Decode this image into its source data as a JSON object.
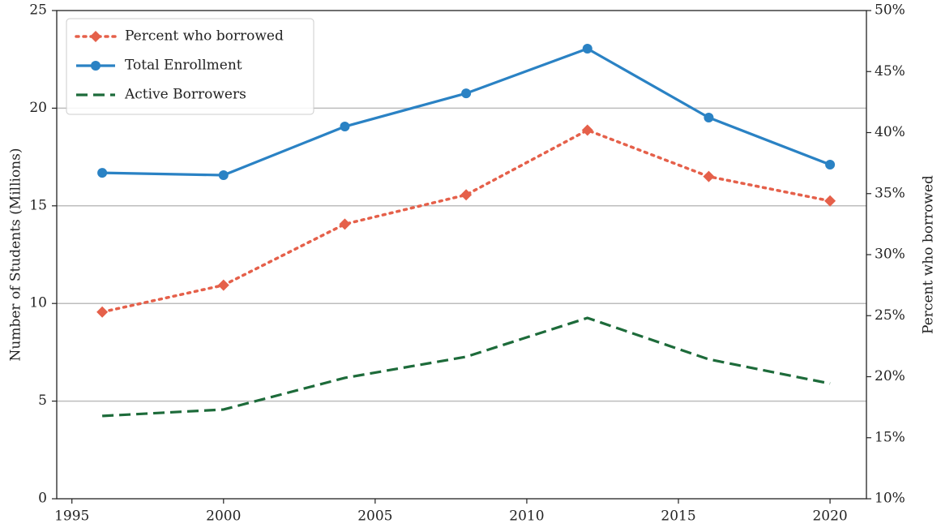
{
  "chart_data": {
    "type": "line",
    "x": [
      1996,
      2000,
      2004,
      2008,
      2012,
      2016,
      2020
    ],
    "series": [
      {
        "name": "Percent who borrowed",
        "color": "#e5604a",
        "linestyle": "dotted",
        "marker": "diamond",
        "axis": "y2",
        "values": [
          25.3,
          27.5,
          32.5,
          34.9,
          40.2,
          36.4,
          34.4
        ]
      },
      {
        "name": "Total Enrollment",
        "color": "#2a82c4",
        "linestyle": "solid",
        "marker": "circle",
        "values": [
          16.69,
          16.57,
          19.06,
          20.76,
          23.05,
          19.52,
          17.11
        ]
      },
      {
        "name": "Active Borrowers",
        "color": "#1d6b3a",
        "linestyle": "dashed",
        "marker": "none",
        "values": [
          4.24,
          4.57,
          6.19,
          7.27,
          9.26,
          7.14,
          5.9
        ]
      }
    ],
    "ylabel": "Number of Students (Millions)",
    "y2label": "Percent who borrowed",
    "xlim": [
      1994.5,
      2021.2
    ],
    "xticks": [
      1995,
      2000,
      2005,
      2010,
      2015,
      2020
    ],
    "ylim": [
      0,
      25
    ],
    "yticks": [
      0,
      5,
      10,
      15,
      20,
      25
    ],
    "y2lim": [
      10,
      50
    ],
    "y2ticks": [
      {
        "value": 10,
        "label": "10%"
      },
      {
        "value": 15,
        "label": "15%"
      },
      {
        "value": 20,
        "label": "20%"
      },
      {
        "value": 25,
        "label": "25%"
      },
      {
        "value": 30,
        "label": "30%"
      },
      {
        "value": 35,
        "label": "35%"
      },
      {
        "value": 40,
        "label": "40%"
      },
      {
        "value": 45,
        "label": "45%"
      },
      {
        "value": 50,
        "label": "50%"
      }
    ],
    "grid": true,
    "legend": "upper-left"
  }
}
